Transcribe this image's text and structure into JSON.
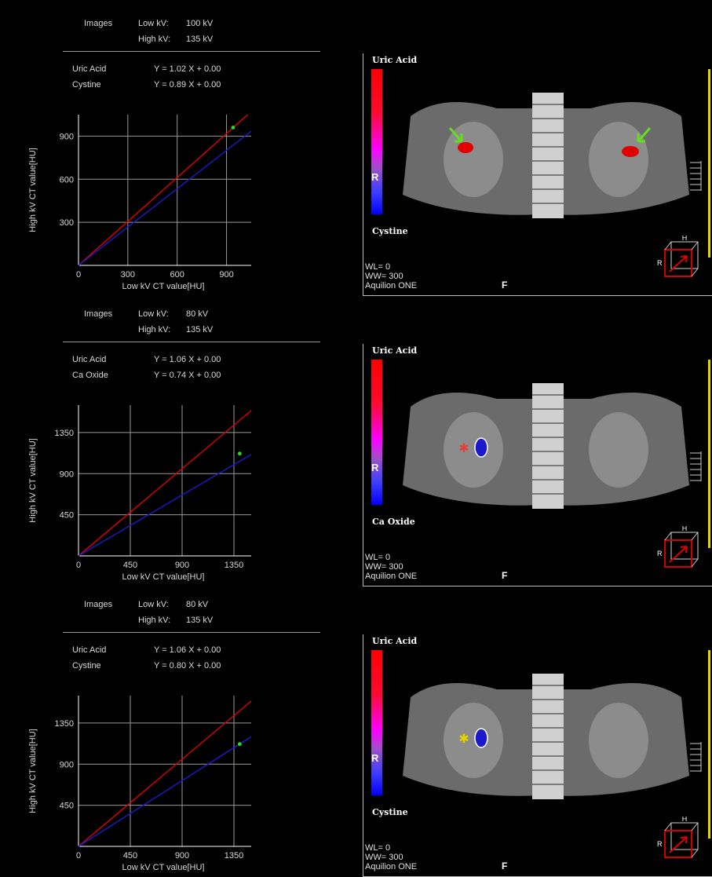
{
  "colors": {
    "red_line": "#e00000",
    "blue_line": "#1a1acc",
    "point": "#22dd22",
    "grid": "#bfbfbf",
    "accent_yellow": "#e6d200"
  },
  "panels": [
    {
      "images_label": "Images",
      "low_kv_label": "Low kV:",
      "low_kv": "100 kV",
      "high_kv_label": "High kV:",
      "high_kv": "135 kV",
      "mat1": "Uric Acid",
      "eq1": "Y = 1.02 X + 0.00",
      "mat2": "Cystine",
      "eq2": "Y = 0.89 X + 0.00",
      "view": {
        "top_label": "Uric Acid",
        "bottom_label": "Cystine",
        "r_label": "R",
        "wl": "WL= 0",
        "ww": "WW= 300",
        "scanner": "Aquilion ONE",
        "f_label": "F",
        "cube_h": "H",
        "cube_r": "R"
      }
    },
    {
      "images_label": "Images",
      "low_kv_label": "Low kV:",
      "low_kv": "80 kV",
      "high_kv_label": "High kV:",
      "high_kv": "135 kV",
      "mat1": "Uric Acid",
      "eq1": "Y = 1.06 X + 0.00",
      "mat2": "Ca Oxide",
      "eq2": "Y = 0.74 X + 0.00",
      "view": {
        "top_label": "Uric Acid",
        "bottom_label": "Ca Oxide",
        "r_label": "R",
        "wl": "WL= 0",
        "ww": "WW= 300",
        "scanner": "Aquilion ONE",
        "f_label": "F",
        "cube_h": "H",
        "cube_r": "R"
      }
    },
    {
      "images_label": "Images",
      "low_kv_label": "Low kV:",
      "low_kv": "80 kV",
      "high_kv_label": "High kV:",
      "high_kv": "135 kV",
      "mat1": "Uric Acid",
      "eq1": "Y = 1.06 X + 0.00",
      "mat2": "Cystine",
      "eq2": "Y = 0.80 X + 0.00",
      "view": {
        "top_label": "Uric Acid",
        "bottom_label": "Cystine",
        "r_label": "R",
        "wl": "WL= 0",
        "ww": "WW= 300",
        "scanner": "Aquilion ONE",
        "f_label": "F",
        "cube_h": "H",
        "cube_r": "R"
      }
    }
  ],
  "chart_data": [
    {
      "type": "line",
      "xlabel": "Low kV CT value[HU]",
      "ylabel": "High kV CT value[HU]",
      "xlim": [
        0,
        1050
      ],
      "ylim": [
        0,
        1050
      ],
      "xticks": [
        0,
        300,
        600,
        900
      ],
      "yticks": [
        300,
        600,
        900
      ],
      "series": [
        {
          "name": "Uric Acid",
          "slope": 1.02,
          "intercept": 0.0,
          "color": "#e00000"
        },
        {
          "name": "Cystine",
          "slope": 0.89,
          "intercept": 0.0,
          "color": "#1a1acc"
        }
      ],
      "points": [
        {
          "x": 940,
          "y": 960
        }
      ]
    },
    {
      "type": "line",
      "xlabel": "Low kV CT value[HU]",
      "ylabel": "High kV CT value[HU]",
      "xlim": [
        0,
        1500
      ],
      "ylim": [
        0,
        1650
      ],
      "xticks": [
        0,
        450,
        900,
        1350
      ],
      "yticks": [
        450,
        900,
        1350
      ],
      "series": [
        {
          "name": "Uric Acid",
          "slope": 1.06,
          "intercept": 0.0,
          "color": "#e00000"
        },
        {
          "name": "Ca Oxide",
          "slope": 0.74,
          "intercept": 0.0,
          "color": "#1a1acc"
        }
      ],
      "points": [
        {
          "x": 1400,
          "y": 1120
        }
      ]
    },
    {
      "type": "line",
      "xlabel": "Low kV CT value[HU]",
      "ylabel": "High kV CT value[HU]",
      "xlim": [
        0,
        1500
      ],
      "ylim": [
        0,
        1650
      ],
      "xticks": [
        0,
        450,
        900,
        1350
      ],
      "yticks": [
        450,
        900,
        1350
      ],
      "series": [
        {
          "name": "Uric Acid",
          "slope": 1.06,
          "intercept": 0.0,
          "color": "#e00000"
        },
        {
          "name": "Cystine",
          "slope": 0.8,
          "intercept": 0.0,
          "color": "#1a1acc"
        }
      ],
      "points": [
        {
          "x": 1400,
          "y": 1120
        }
      ]
    }
  ]
}
